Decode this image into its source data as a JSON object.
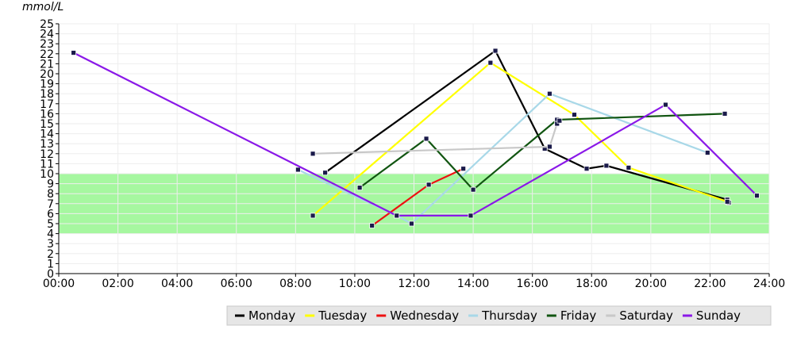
{
  "chart_data": {
    "type": "line",
    "title": "",
    "xlabel": "",
    "ylabel": "mmol/L",
    "xlim": [
      "00:00",
      "24:00"
    ],
    "ylim": [
      0,
      25
    ],
    "x_ticks": [
      "00:00",
      "02:00",
      "04:00",
      "06:00",
      "08:00",
      "10:00",
      "12:00",
      "14:00",
      "16:00",
      "18:00",
      "20:00",
      "22:00",
      "24:00"
    ],
    "y_ticks": [
      0,
      1,
      2,
      3,
      4,
      5,
      6,
      7,
      8,
      9,
      10,
      11,
      12,
      13,
      14,
      15,
      16,
      17,
      18,
      19,
      20,
      21,
      22,
      23,
      24,
      25
    ],
    "target_range": {
      "low": 4,
      "high": 10,
      "color": "#a6f7a0"
    },
    "grid": true,
    "legend": "bottom-right",
    "series": [
      {
        "name": "Monday",
        "color": "#000000",
        "x": [
          "09:00",
          "14:45",
          "16:25",
          "17:50",
          "18:30",
          "22:35",
          "22:38"
        ],
        "y": [
          10.1,
          22.3,
          12.5,
          10.5,
          10.8,
          7.4,
          7.1
        ]
      },
      {
        "name": "Tuesday",
        "color": "#ffff00",
        "x": [
          "08:35",
          "14:35",
          "17:25",
          "19:15",
          "22:35"
        ],
        "y": [
          5.8,
          21.1,
          15.9,
          10.6,
          7.2
        ]
      },
      {
        "name": "Wednesday",
        "color": "#ee1111",
        "x": [
          "10:35",
          "12:30",
          "13:40"
        ],
        "y": [
          4.8,
          8.9,
          10.5
        ]
      },
      {
        "name": "Thursday",
        "color": "#a8d8e8",
        "x": [
          "08:05",
          "11:25",
          "11:55",
          "16:35",
          "21:55"
        ],
        "y": [
          10.4,
          5.8,
          5.0,
          18.0,
          12.1
        ]
      },
      {
        "name": "Friday",
        "color": "#115511",
        "x": [
          "10:10",
          "12:25",
          "14:00",
          "16:50",
          "22:30"
        ],
        "y": [
          8.6,
          13.5,
          8.4,
          15.4,
          16.0
        ]
      },
      {
        "name": "Saturday",
        "color": "#c8c8c8",
        "x": [
          "08:35",
          "16:35",
          "16:50",
          "16:55"
        ],
        "y": [
          12.0,
          12.7,
          15.0,
          15.3
        ]
      },
      {
        "name": "Sunday",
        "color": "#8a18e8",
        "x": [
          "00:30",
          "11:25",
          "13:55",
          "20:30",
          "23:35"
        ],
        "y": [
          22.1,
          5.8,
          5.8,
          16.9,
          7.8
        ]
      }
    ]
  }
}
